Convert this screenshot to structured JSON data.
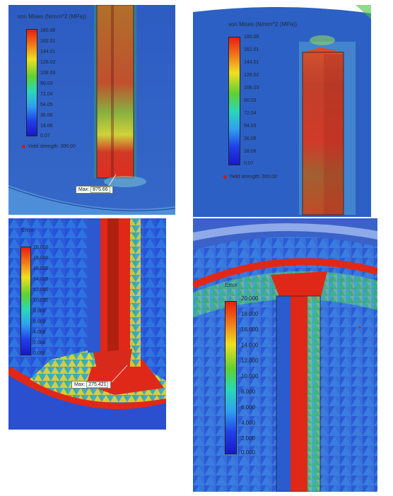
{
  "panels": [
    {
      "id": "top-left",
      "legend_title": "von Mises (N/mm^2 (MPa))",
      "ticks": [
        "180.00",
        "162.01",
        "144.01",
        "126.02",
        "108.03",
        "90.03",
        "72.04",
        "54.05",
        "36.06",
        "18.06",
        "0.07"
      ],
      "yield_label": "Yield strength: 300.00",
      "max_label": "Max:",
      "max_value": "875.66"
    },
    {
      "id": "top-right",
      "legend_title": "von Mises (N/mm^2 (MPa))",
      "ticks": [
        "180.00",
        "162.01",
        "144.01",
        "126.02",
        "108.03",
        "90.03",
        "72.04",
        "54.05",
        "36.06",
        "18.06",
        "0.07"
      ],
      "yield_label": "Yield strength: 300.00"
    },
    {
      "id": "bottom-left",
      "legend_title": "Error",
      "ticks": [
        "20.000",
        "18.000",
        "16.000",
        "14.000",
        "12.000",
        "10.000",
        "8.000",
        "6.000",
        "4.000",
        "2.000",
        "0.000"
      ],
      "max_label": "Max:",
      "max_value": "275.421"
    },
    {
      "id": "bottom-right",
      "legend_title": "Error",
      "ticks": [
        "20.000",
        "18.000",
        "16.000",
        "14.000",
        "12.000",
        "10.000",
        "8.000",
        "6.000",
        "4.000",
        "2.000",
        "0.000"
      ]
    }
  ]
}
